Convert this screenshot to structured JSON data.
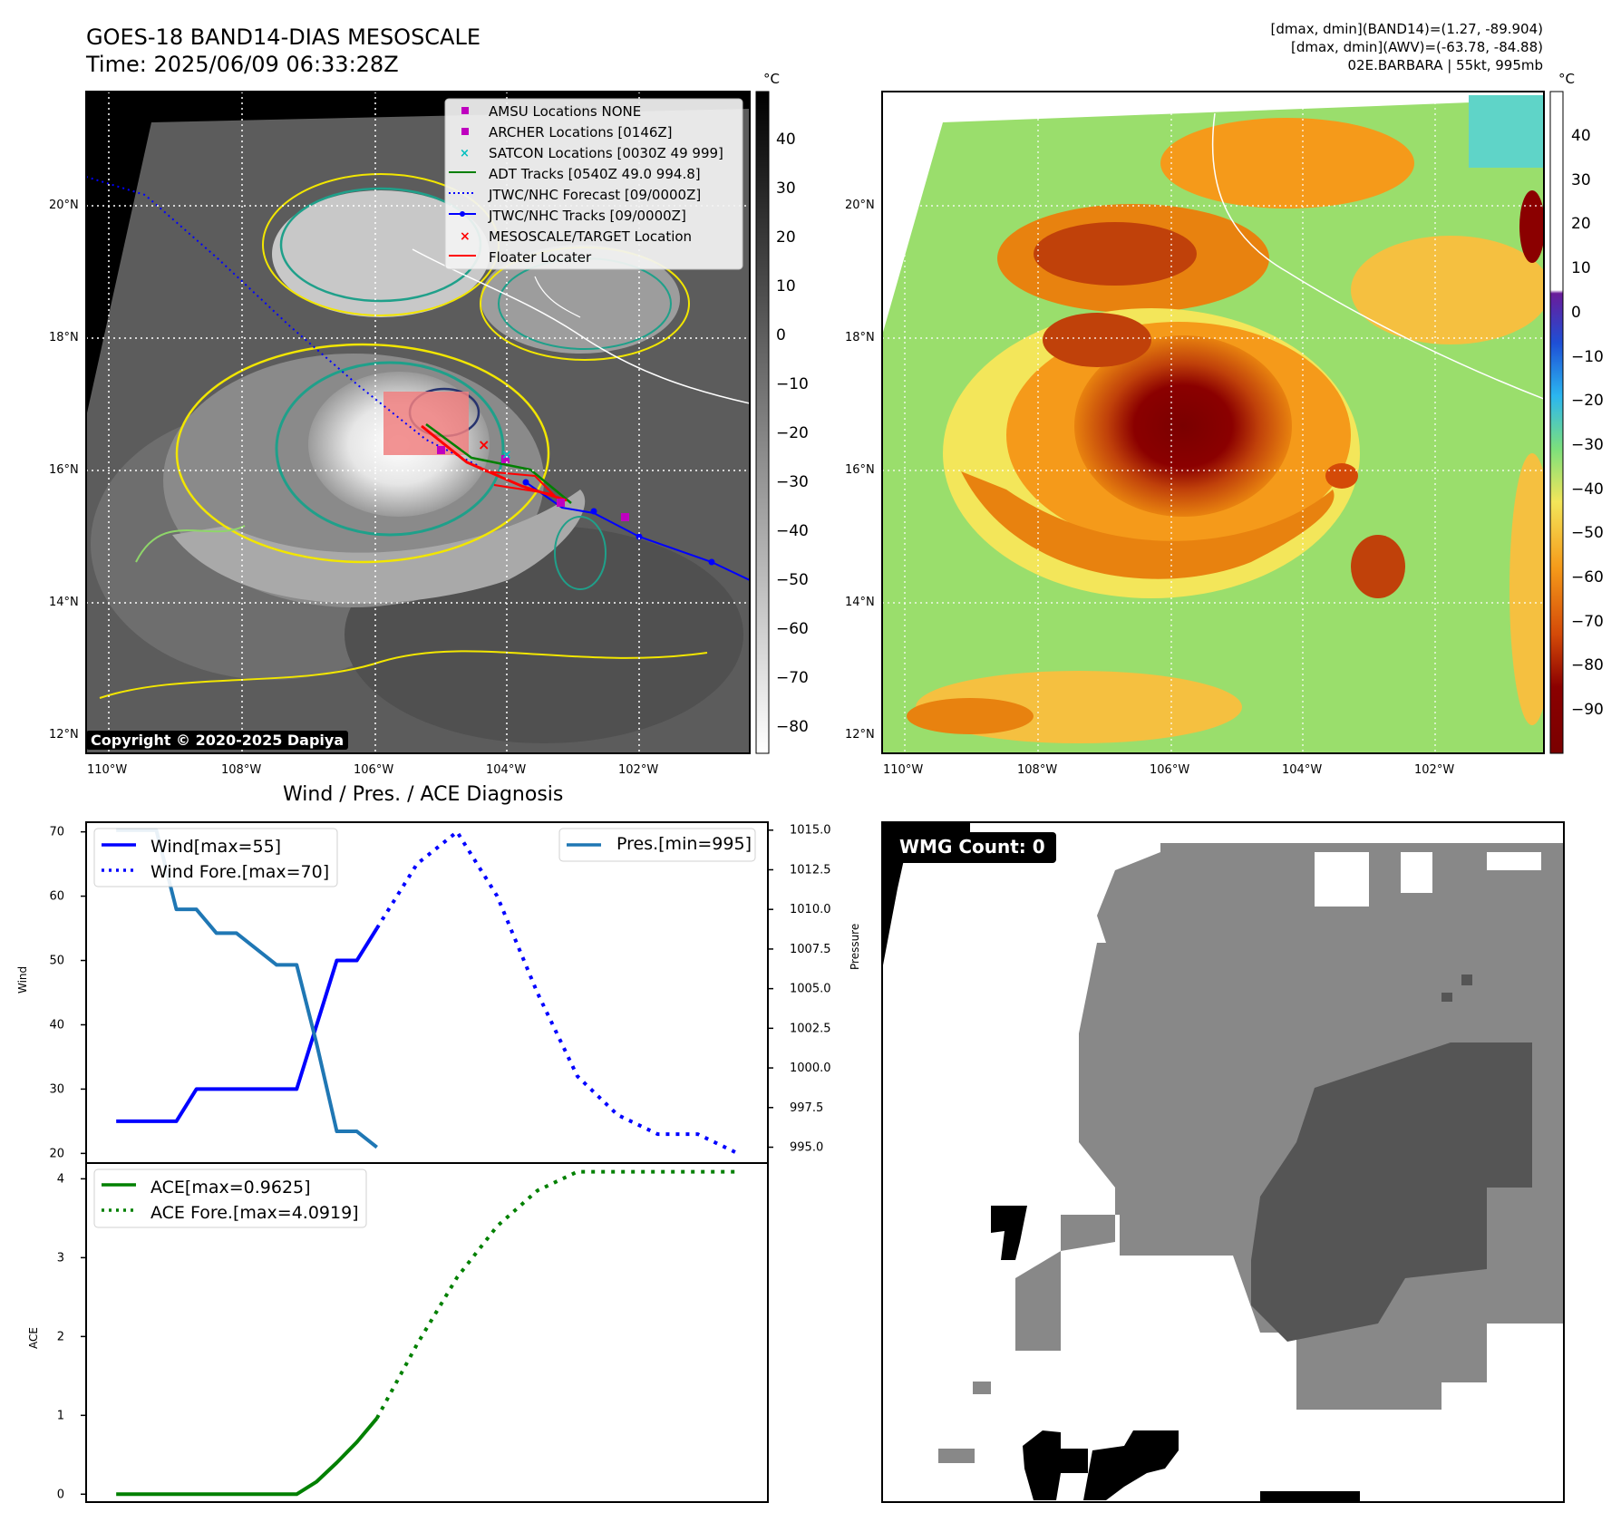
{
  "header": {
    "title_line1": "GOES-18 BAND14-DIAS MESOSCALE",
    "title_line2": "Time: 2025/06/09 06:33:28Z",
    "right_line1": "[dmax, dmin](BAND14)=(1.27, -89.904)",
    "right_line2": "[dmax, dmin](AWV)=(-63.78, -84.88)",
    "right_line3": "02E.BARBARA | 55kt, 995mb"
  },
  "maps": {
    "lat_labels": [
      "20°N",
      "18°N",
      "16°N",
      "14°N",
      "12°N"
    ],
    "lon_labels_left": [
      "110°W",
      "108°W",
      "106°W",
      "104°W",
      "102°W"
    ],
    "lon_labels_right": [
      "110°W",
      "108°W",
      "106°W",
      "104°W",
      "102°W"
    ],
    "copyright": "Copyright © 2020-2025 Dapiya",
    "unit_left": "°C",
    "unit_right": "°C",
    "colorbar_left_ticks": [
      "40",
      "30",
      "20",
      "10",
      "0",
      "−10",
      "−20",
      "−30",
      "−40",
      "−50",
      "−60",
      "−70",
      "−80"
    ],
    "colorbar_right_ticks": [
      "40",
      "30",
      "20",
      "10",
      "0",
      "−10",
      "−20",
      "−30",
      "−40",
      "−50",
      "−60",
      "−70",
      "−80",
      "−90"
    ],
    "legend": [
      {
        "label": "AMSU Locations NONE",
        "marker": "square",
        "color": "#bf00bf"
      },
      {
        "label": "ARCHER Locations [0146Z]",
        "marker": "square",
        "color": "#bf00bf"
      },
      {
        "label": "SATCON Locations [0030Z 49 999]",
        "marker": "x",
        "color": "#00bfbf"
      },
      {
        "label": "ADT Tracks [0540Z 49.0 994.8]",
        "marker": "line",
        "color": "#008000"
      },
      {
        "label": "JTWC/NHC Forecast [09/0000Z]",
        "marker": "dotted",
        "color": "#0000ff"
      },
      {
        "label": "JTWC/NHC Tracks [09/0000Z]",
        "marker": "line-dot",
        "color": "#0000ff"
      },
      {
        "label": "MESOSCALE/TARGET Location",
        "marker": "x",
        "color": "#ff0000"
      },
      {
        "label": "Floater Locater",
        "marker": "line",
        "color": "#ff0000"
      }
    ]
  },
  "diagnosis": {
    "title": "Wind / Pres. / ACE Diagnosis",
    "wind_ylabel": "Wind",
    "pres_ylabel": "Pressure",
    "ace_ylabel": "ACE",
    "wmg_label": "WMG Count: 0"
  },
  "chart_data": [
    {
      "type": "line",
      "title": "Wind / Pres. / ACE Diagnosis",
      "ylabel": "Wind",
      "ylim": [
        18.5,
        71.5
      ],
      "yticks": [
        20,
        30,
        40,
        50,
        60,
        70
      ],
      "y2label": "Pressure",
      "y2lim": [
        994,
        1015.5
      ],
      "y2ticks": [
        995.0,
        997.5,
        1000.0,
        1002.5,
        1005.0,
        1007.5,
        1010.0,
        1012.5,
        1015.0
      ],
      "series": [
        {
          "name": "Wind[max=55]",
          "style": "solid",
          "color": "#0000ff",
          "axis": "left",
          "x": [
            0,
            1,
            2,
            3,
            4,
            5,
            6,
            7,
            8,
            9,
            10,
            11,
            12,
            13
          ],
          "values": [
            25,
            25,
            25,
            25,
            30,
            30,
            30,
            30,
            30,
            30,
            40,
            50,
            50,
            55
          ]
        },
        {
          "name": "Wind Fore.[max=70]",
          "style": "dotted",
          "color": "#0000ff",
          "axis": "left",
          "x": [
            13,
            15,
            17,
            19,
            21,
            23,
            25,
            27,
            29,
            31
          ],
          "values": [
            55,
            65,
            70,
            60,
            45,
            32,
            26,
            23,
            23,
            20
          ]
        },
        {
          "name": "Pres.[min=995]",
          "style": "solid",
          "color": "#1f77b4",
          "axis": "right",
          "x": [
            0,
            1,
            2,
            3,
            4,
            5,
            6,
            7,
            8,
            9,
            10,
            11,
            12,
            13
          ],
          "values": [
            1015,
            1015,
            1015,
            1010,
            1010,
            1008.5,
            1008.5,
            1007.5,
            1006.5,
            1006.5,
            1001.5,
            996,
            996,
            995
          ]
        }
      ]
    },
    {
      "type": "line",
      "ylabel": "ACE",
      "ylim": [
        -0.1,
        4.2
      ],
      "yticks": [
        0,
        1,
        2,
        3,
        4
      ],
      "series": [
        {
          "name": "ACE[max=0.9625]",
          "style": "solid",
          "color": "#008000",
          "x": [
            0,
            1,
            2,
            3,
            4,
            5,
            6,
            7,
            8,
            9,
            10,
            11,
            12,
            13
          ],
          "values": [
            0,
            0,
            0,
            0,
            0,
            0,
            0,
            0,
            0,
            0,
            0.16,
            0.4,
            0.66,
            0.9625
          ]
        },
        {
          "name": "ACE Fore.[max=4.0919]",
          "style": "dotted",
          "color": "#008000",
          "x": [
            13,
            15,
            17,
            19,
            21,
            23,
            25,
            27,
            29,
            31
          ],
          "values": [
            0.9625,
            1.9,
            2.75,
            3.4,
            3.85,
            4.09,
            4.09,
            4.09,
            4.09,
            4.09
          ]
        }
      ]
    }
  ]
}
